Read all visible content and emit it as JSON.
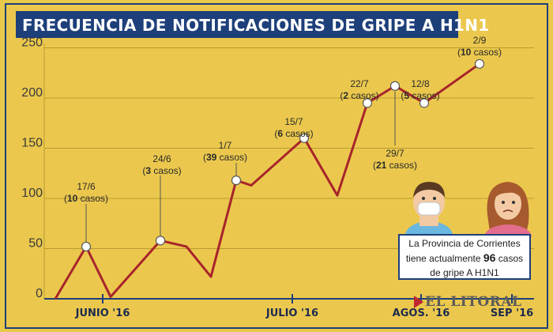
{
  "title": "FRECUENCIA DE NOTIFICACIONES DE GRIPE A H1N1",
  "note": {
    "line1": "La Provincia de Corrientes",
    "line2_pre": "tiene actualmente ",
    "line2_num": "96",
    "line2_post": " casos",
    "line3": "de gripe A H1N1"
  },
  "logo": "EL LITORAL",
  "colors": {
    "background": "#ebc84d",
    "title_bar": "#1d3f7a",
    "line": "#a8242b",
    "marker_fill": "#ffffff"
  },
  "chart_data": {
    "type": "line",
    "title": "FRECUENCIA DE NOTIFICACIONES DE GRIPE A H1N1",
    "ylim": [
      0,
      250
    ],
    "yticks": [
      0,
      50,
      100,
      150,
      200,
      250
    ],
    "grid": true,
    "month_labels": [
      "JUNIO '16",
      "JULIO '16",
      "AGOS. '16",
      "SEP '16"
    ],
    "values": [
      0,
      52,
      2,
      58,
      52,
      22,
      118,
      113,
      160,
      103,
      195,
      212,
      195,
      234
    ],
    "markers": [
      1,
      3,
      6,
      8,
      10,
      11,
      12,
      13
    ],
    "annotations": [
      {
        "point": 1,
        "date": "17/6",
        "count": "10",
        "unit": " casos",
        "open": "(",
        "close": ")"
      },
      {
        "point": 3,
        "date": "24/6",
        "count": "3",
        "unit": " casos",
        "open": "(",
        "close": ")"
      },
      {
        "point": 6,
        "date": "1/7",
        "count": "39",
        "unit": " casos",
        "open": "(",
        "close": ")"
      },
      {
        "point": 8,
        "date": "15/7",
        "count": "6",
        "unit": " casos",
        "open": "(",
        "close": ")"
      },
      {
        "point": 10,
        "date": "22/7",
        "count": "2",
        "unit": " casos",
        "open": "(",
        "close": ")"
      },
      {
        "point": 11,
        "date": "29/7",
        "count": "21",
        "unit": " casos",
        "open": "(",
        "close": ")"
      },
      {
        "point": 12,
        "date": "12/8",
        "count": "5",
        "unit": " casos",
        "open": "(",
        "close": ")"
      },
      {
        "point": 13,
        "date": "2/9",
        "count": "10",
        "unit": " casos",
        "open": "(",
        "close": ")"
      }
    ]
  }
}
